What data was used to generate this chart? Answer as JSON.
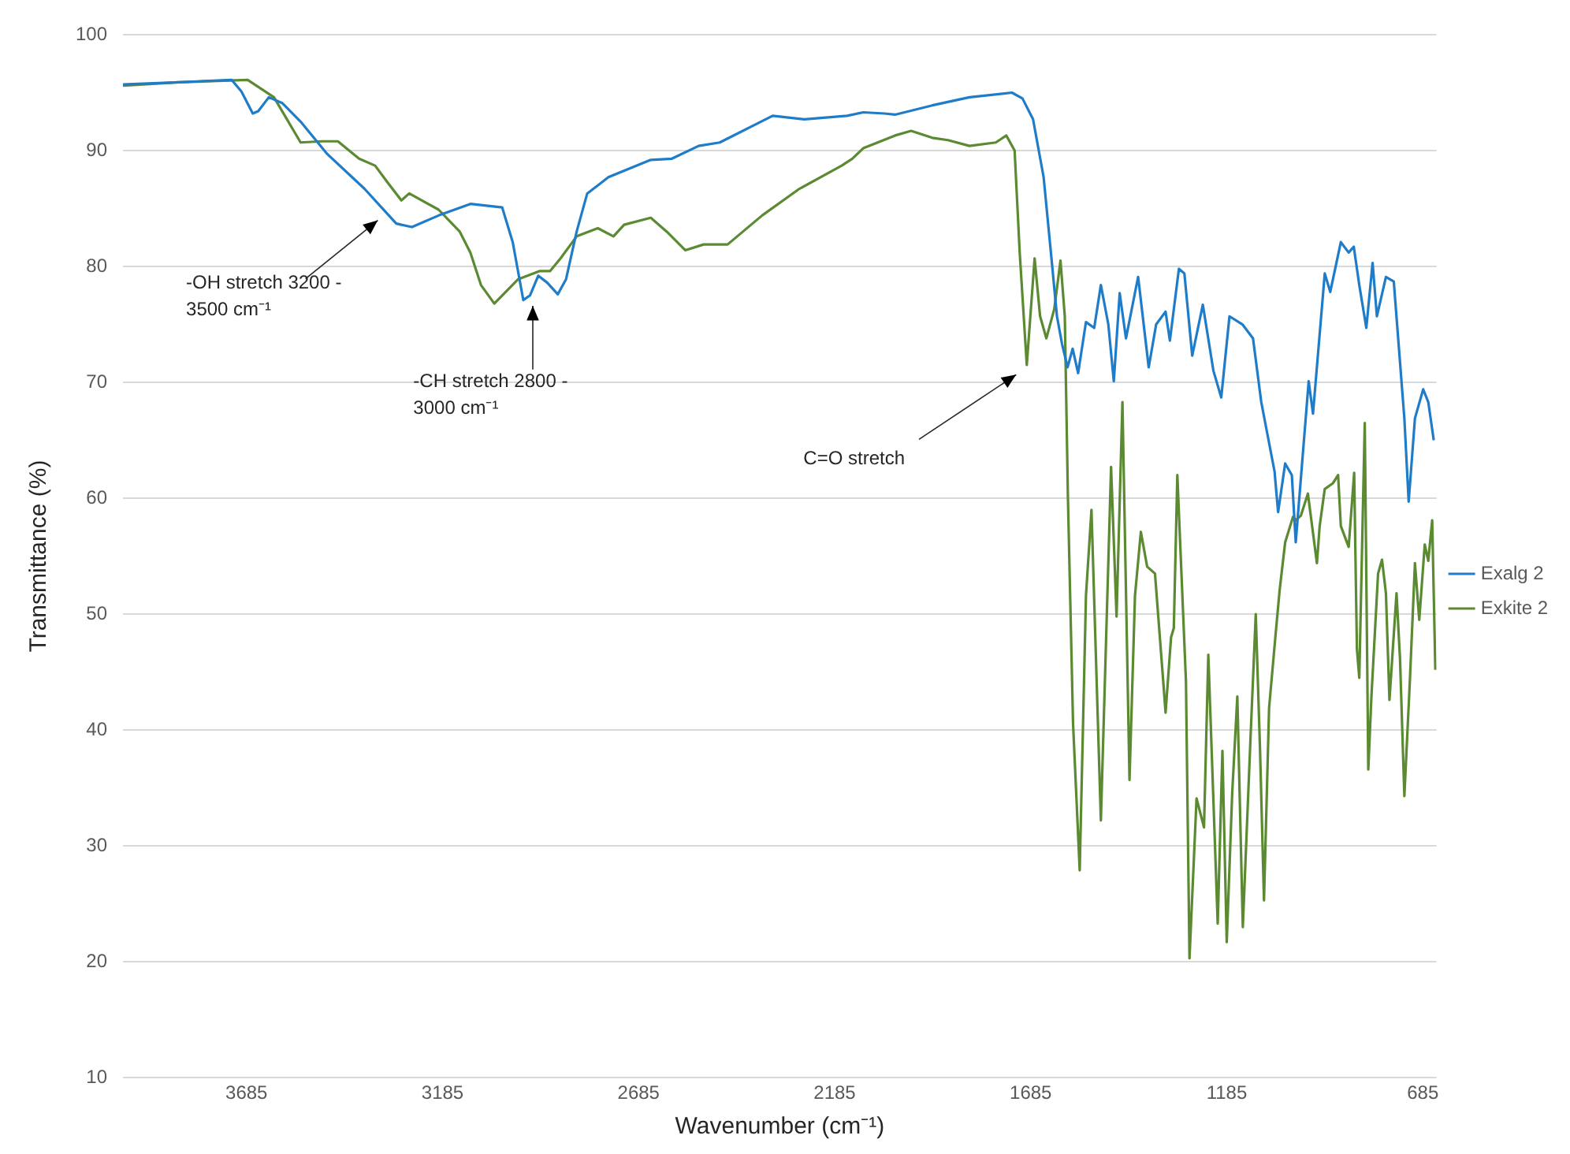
{
  "chart_data": {
    "type": "line",
    "xlabel": "Wavenumber (cm⁻¹)",
    "ylabel": "Transmittance (%)",
    "xlim": [
      4000,
      650
    ],
    "xticks": [
      3685,
      3185,
      2685,
      2185,
      1685,
      1185,
      685
    ],
    "ylim": [
      10,
      100
    ],
    "yticks": [
      10,
      20,
      30,
      40,
      50,
      60,
      70,
      80,
      90,
      100
    ],
    "grid": "y",
    "legend": "right",
    "marker": "none",
    "annotations": [
      "-OH stretch 3200 - 3500 cm⁻¹",
      "-CH stretch 2800 - 3000 cm⁻¹",
      "C=O stretch"
    ],
    "series": [
      {
        "name": "Exalg 2",
        "color": "#1f7cc9",
        "x": [
          4000,
          3858,
          3723,
          3698,
          3669,
          3655,
          3628,
          3594,
          3547,
          3479,
          3384,
          3303,
          3263,
          3195,
          3114,
          3033,
          3006,
          2979,
          2962,
          2941,
          2918,
          2891,
          2870,
          2843,
          2816,
          2762,
          2654,
          2600,
          2532,
          2478,
          2343,
          2262,
          2153,
          2112,
          2058,
          2031,
          1936,
          1841,
          1733,
          1706,
          1679,
          1652,
          1632,
          1618,
          1605,
          1591,
          1578,
          1564,
          1544,
          1523,
          1506,
          1487,
          1473,
          1458,
          1442,
          1411,
          1384,
          1365,
          1341,
          1330,
          1307,
          1293,
          1273,
          1246,
          1219,
          1199,
          1178,
          1145,
          1118,
          1097,
          1063,
          1054,
          1036,
          1019,
          1009,
          976,
          965,
          935,
          921,
          894,
          874,
          861,
          847,
          829,
          813,
          802,
          779,
          759,
          732,
          721,
          705,
          684,
          671,
          657
        ],
        "values": [
          95.7,
          95.9,
          96.1,
          95.1,
          93.2,
          93.4,
          94.6,
          94.1,
          92.5,
          89.7,
          86.7,
          83.7,
          83.4,
          84.4,
          85.4,
          85.1,
          82.1,
          77.1,
          77.5,
          79.2,
          78.6,
          77.6,
          78.9,
          83.0,
          86.3,
          87.7,
          89.2,
          89.3,
          90.4,
          90.7,
          93.0,
          92.7,
          93.0,
          93.3,
          93.2,
          93.1,
          93.9,
          94.6,
          95.0,
          94.5,
          92.7,
          87.7,
          80.7,
          75.7,
          73.3,
          71.3,
          72.9,
          70.8,
          75.2,
          74.7,
          78.4,
          75.0,
          70.1,
          77.7,
          73.8,
          79.1,
          71.3,
          75.0,
          76.1,
          73.6,
          79.8,
          79.4,
          72.3,
          76.7,
          71.0,
          68.7,
          75.7,
          75.0,
          73.8,
          68.3,
          62.3,
          58.8,
          63.0,
          62.0,
          56.2,
          70.1,
          67.3,
          79.4,
          77.8,
          82.1,
          81.2,
          81.7,
          78.4,
          74.7,
          80.3,
          75.7,
          79.1,
          78.7,
          66.9,
          59.7,
          66.9,
          69.4,
          68.3,
          65.0
        ]
      },
      {
        "name": "Exkite 2",
        "color": "#5b8a32",
        "x": [
          4000,
          3858,
          3682,
          3615,
          3547,
          3493,
          3452,
          3398,
          3357,
          3324,
          3290,
          3270,
          3195,
          3141,
          3114,
          3087,
          3053,
          2992,
          2938,
          2911,
          2884,
          2843,
          2789,
          2749,
          2722,
          2654,
          2613,
          2566,
          2519,
          2458,
          2370,
          2275,
          2167,
          2140,
          2112,
          2031,
          1990,
          1936,
          1896,
          1841,
          1774,
          1747,
          1726,
          1713,
          1695,
          1675,
          1661,
          1645,
          1625,
          1609,
          1598,
          1590,
          1577,
          1560,
          1544,
          1530,
          1506,
          1480,
          1466,
          1451,
          1433,
          1419,
          1404,
          1388,
          1368,
          1347,
          1341,
          1327,
          1320,
          1311,
          1289,
          1280,
          1262,
          1243,
          1232,
          1208,
          1196,
          1185,
          1171,
          1158,
          1144,
          1124,
          1111,
          1100,
          1090,
          1077,
          1060,
          1050,
          1036,
          1016,
          1009,
          996,
          978,
          955,
          948,
          935,
          914,
          901,
          894,
          874,
          860,
          853,
          847,
          833,
          824,
          816,
          799,
          789,
          779,
          770,
          752,
          743,
          732,
          718,
          705,
          694,
          680,
          671,
          661,
          653
        ],
        "values": [
          95.6,
          95.9,
          96.1,
          94.6,
          90.7,
          90.8,
          90.8,
          89.3,
          88.7,
          87.2,
          85.7,
          86.3,
          84.9,
          83.0,
          81.2,
          78.4,
          76.8,
          78.9,
          79.6,
          79.6,
          80.7,
          82.6,
          83.3,
          82.6,
          83.6,
          84.2,
          83.0,
          81.4,
          81.9,
          81.9,
          84.4,
          86.7,
          88.7,
          89.3,
          90.2,
          91.3,
          91.7,
          91.1,
          90.9,
          90.4,
          90.7,
          91.3,
          90.0,
          81.2,
          71.5,
          80.7,
          75.7,
          73.8,
          76.3,
          80.5,
          75.7,
          60.0,
          40.6,
          27.9,
          51.6,
          59.0,
          32.2,
          62.7,
          49.8,
          68.3,
          35.7,
          51.6,
          57.1,
          54.1,
          53.5,
          44.2,
          41.5,
          48.0,
          48.8,
          62.0,
          44.2,
          20.3,
          34.1,
          31.6,
          46.5,
          23.3,
          38.2,
          21.7,
          34.6,
          42.9,
          23.0,
          39.6,
          50.0,
          38.2,
          25.3,
          41.9,
          48.4,
          52.1,
          56.2,
          58.4,
          58.1,
          58.5,
          60.4,
          54.4,
          57.6,
          60.8,
          61.3,
          62.0,
          57.6,
          55.8,
          62.2,
          47.0,
          44.5,
          66.5,
          36.6,
          42.9,
          53.5,
          54.7,
          51.8,
          42.6,
          51.8,
          46.1,
          34.3,
          44.2,
          54.4,
          49.5,
          56.0,
          54.6,
          58.1,
          45.2
        ]
      }
    ]
  }
}
